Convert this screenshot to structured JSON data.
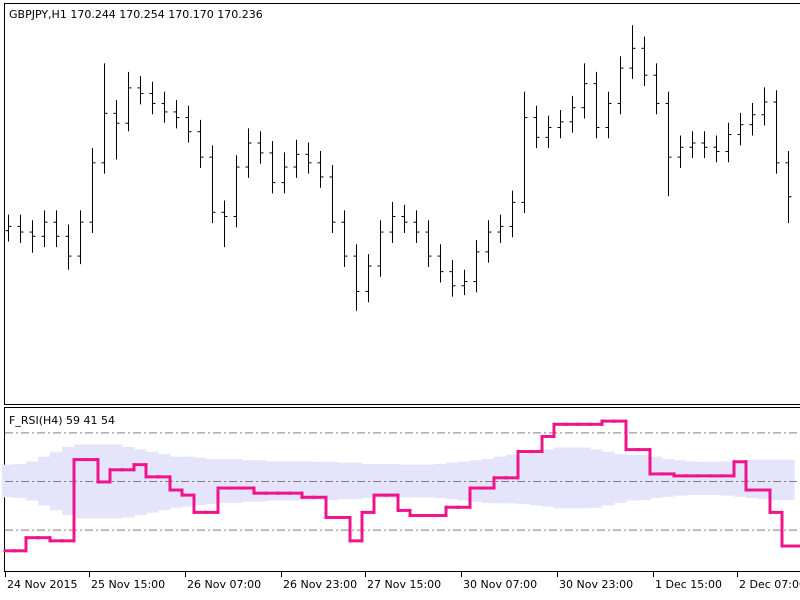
{
  "chart_data": {
    "type": "ohlc",
    "title": "GBPJPY,H1  170.244 170.254 170.170 170.236",
    "color": "#000000",
    "ylim": [
      168.77,
      171.6
    ],
    "categories": [
      "24 Nov 2015",
      null,
      null,
      null,
      null,
      null,
      null,
      "25 Nov 15:00",
      null,
      null,
      null,
      null,
      null,
      null,
      null,
      "26 Nov 07:00",
      null,
      null,
      null,
      null,
      null,
      null,
      null,
      "26 Nov 23:00",
      null,
      null,
      null,
      null,
      null,
      null,
      "27 Nov 15:00",
      null,
      null,
      null,
      null,
      null,
      null,
      null,
      "30 Nov 07:00",
      null,
      null,
      null,
      null,
      null,
      null,
      null,
      "30 Nov 23:00",
      null,
      null,
      null,
      null,
      null,
      null,
      null,
      "1 Dec 15:00",
      null,
      null,
      null,
      null,
      null,
      null,
      "2 Dec 07:00",
      null,
      null,
      null,
      null
    ],
    "open": [
      170.0,
      170.03,
      169.99,
      169.96,
      170.06,
      169.96,
      169.82,
      170.06,
      170.48,
      170.83,
      170.76,
      171.01,
      170.97,
      170.9,
      170.84,
      170.8,
      170.7,
      170.52,
      170.13,
      170.1,
      170.45,
      170.62,
      170.55,
      170.34,
      170.45,
      170.54,
      170.48,
      170.38,
      170.06,
      169.82,
      169.57,
      169.75,
      169.99,
      170.1,
      170.06,
      169.99,
      169.82,
      169.71,
      169.61,
      169.64,
      169.85,
      169.99,
      170.03,
      170.2,
      170.8,
      170.66,
      170.73,
      170.77,
      170.87,
      171.04,
      170.73,
      170.9,
      171.15,
      171.29,
      171.1,
      170.9,
      170.52,
      170.59,
      170.62,
      170.59,
      170.56,
      170.68,
      170.75,
      170.82,
      170.91,
      170.48
    ],
    "high": [
      170.11,
      170.11,
      170.07,
      170.14,
      170.14,
      170.04,
      170.14,
      170.58,
      171.18,
      170.92,
      171.12,
      171.09,
      171.05,
      170.98,
      170.92,
      170.88,
      170.78,
      170.6,
      170.21,
      170.53,
      170.72,
      170.7,
      170.63,
      170.55,
      170.64,
      170.62,
      170.56,
      170.46,
      170.14,
      169.9,
      169.83,
      170.07,
      170.2,
      170.18,
      170.14,
      170.07,
      169.9,
      169.79,
      169.72,
      169.93,
      170.07,
      170.11,
      170.28,
      170.98,
      170.88,
      170.81,
      170.85,
      170.95,
      171.18,
      171.12,
      170.98,
      171.23,
      171.45,
      171.37,
      171.18,
      170.98,
      170.67,
      170.7,
      170.7,
      170.67,
      170.76,
      170.83,
      170.9,
      171.01,
      170.99,
      170.56
    ],
    "low": [
      169.92,
      169.91,
      169.84,
      169.88,
      169.88,
      169.72,
      169.76,
      169.98,
      170.4,
      170.5,
      170.7,
      170.89,
      170.82,
      170.76,
      170.72,
      170.62,
      170.44,
      170.05,
      169.88,
      170.02,
      170.37,
      170.47,
      170.26,
      170.26,
      170.37,
      170.4,
      170.3,
      169.98,
      169.74,
      169.43,
      169.49,
      169.67,
      169.91,
      169.98,
      169.91,
      169.74,
      169.63,
      169.53,
      169.54,
      169.56,
      169.77,
      169.91,
      169.95,
      170.12,
      170.58,
      170.58,
      170.65,
      170.69,
      170.79,
      170.65,
      170.65,
      170.82,
      171.07,
      171.02,
      170.82,
      170.24,
      170.44,
      170.51,
      170.51,
      170.48,
      170.48,
      170.6,
      170.67,
      170.74,
      170.4,
      170.05
    ],
    "close": [
      170.03,
      169.99,
      169.96,
      170.06,
      169.96,
      169.82,
      170.06,
      170.48,
      170.83,
      170.76,
      171.01,
      170.97,
      170.9,
      170.84,
      170.8,
      170.7,
      170.52,
      170.13,
      170.1,
      170.45,
      170.62,
      170.55,
      170.34,
      170.45,
      170.54,
      170.48,
      170.38,
      170.06,
      169.82,
      169.57,
      169.75,
      169.99,
      170.1,
      170.06,
      169.99,
      169.82,
      169.71,
      169.61,
      169.64,
      169.85,
      169.99,
      170.03,
      170.2,
      170.8,
      170.66,
      170.73,
      170.77,
      170.87,
      171.04,
      170.73,
      170.9,
      171.15,
      171.29,
      171.1,
      170.9,
      170.52,
      170.59,
      170.62,
      170.59,
      170.56,
      170.68,
      170.75,
      170.82,
      170.91,
      170.48,
      170.24
    ],
    "indicator": {
      "type": "rsi-band",
      "title": "F_RSI(H4) 59 41 54",
      "color": "#f0148c",
      "band_color": "#e4e4fb",
      "level_color": "#808080",
      "ylim": [
        13,
        80
      ],
      "levels": [
        30,
        50,
        70
      ],
      "values": [
        21.3,
        21.3,
        26.7,
        26.7,
        25.4,
        25.4,
        58.8,
        58.8,
        49.6,
        54.6,
        54.6,
        56.7,
        51.7,
        51.7,
        46.3,
        44.2,
        37.1,
        37.1,
        47.1,
        47.1,
        47.1,
        45.0,
        45.0,
        45.0,
        45.0,
        43.3,
        43.3,
        35.0,
        35.0,
        25.4,
        37.1,
        44.2,
        44.2,
        37.9,
        35.8,
        35.8,
        35.8,
        39.2,
        39.2,
        47.1,
        47.1,
        51.3,
        51.3,
        62.1,
        62.1,
        68.3,
        73.3,
        73.3,
        73.3,
        73.3,
        74.6,
        74.6,
        62.9,
        62.9,
        52.9,
        52.9,
        52.1,
        52.1,
        52.1,
        52.1,
        52.1,
        57.9,
        46.3,
        46.3,
        37.1,
        23.3
      ],
      "band_upper": [
        56.7,
        57,
        58,
        60,
        62,
        64,
        65,
        65,
        65,
        65,
        64,
        63,
        62,
        61,
        60,
        60,
        59.6,
        59,
        59,
        59,
        58.5,
        58.5,
        58,
        58,
        58,
        58,
        57.9,
        57.9,
        57.5,
        57.5,
        57,
        57,
        57,
        56.7,
        56.7,
        56.7,
        57,
        57.5,
        58,
        58.5,
        59,
        60,
        60.8,
        61,
        62,
        63,
        63.75,
        63.75,
        63.75,
        63,
        62,
        61,
        60.8,
        60.8,
        60,
        59,
        58.5,
        58,
        57.9,
        57.9,
        58,
        58.5,
        58.75,
        58.75,
        58.75,
        58.75
      ],
      "band_lower": [
        43.3,
        43,
        42,
        40,
        38,
        36,
        34.6,
        34.6,
        34.6,
        34.6,
        35,
        36,
        37,
        38,
        39,
        39.5,
        40,
        40.5,
        41,
        41,
        41.5,
        41.5,
        42,
        42,
        42,
        42,
        42.1,
        42.1,
        42.5,
        42.5,
        43,
        43,
        43,
        43.3,
        43.3,
        43.3,
        43,
        42.5,
        42,
        41.5,
        41,
        40.8,
        40.8,
        40.5,
        40,
        39.5,
        38.75,
        38.75,
        38.75,
        39,
        40,
        41,
        42,
        42.1,
        43,
        43.5,
        44,
        44.2,
        44.2,
        44.2,
        44,
        43.5,
        43,
        42.5,
        42.1,
        42.1
      ]
    }
  }
}
